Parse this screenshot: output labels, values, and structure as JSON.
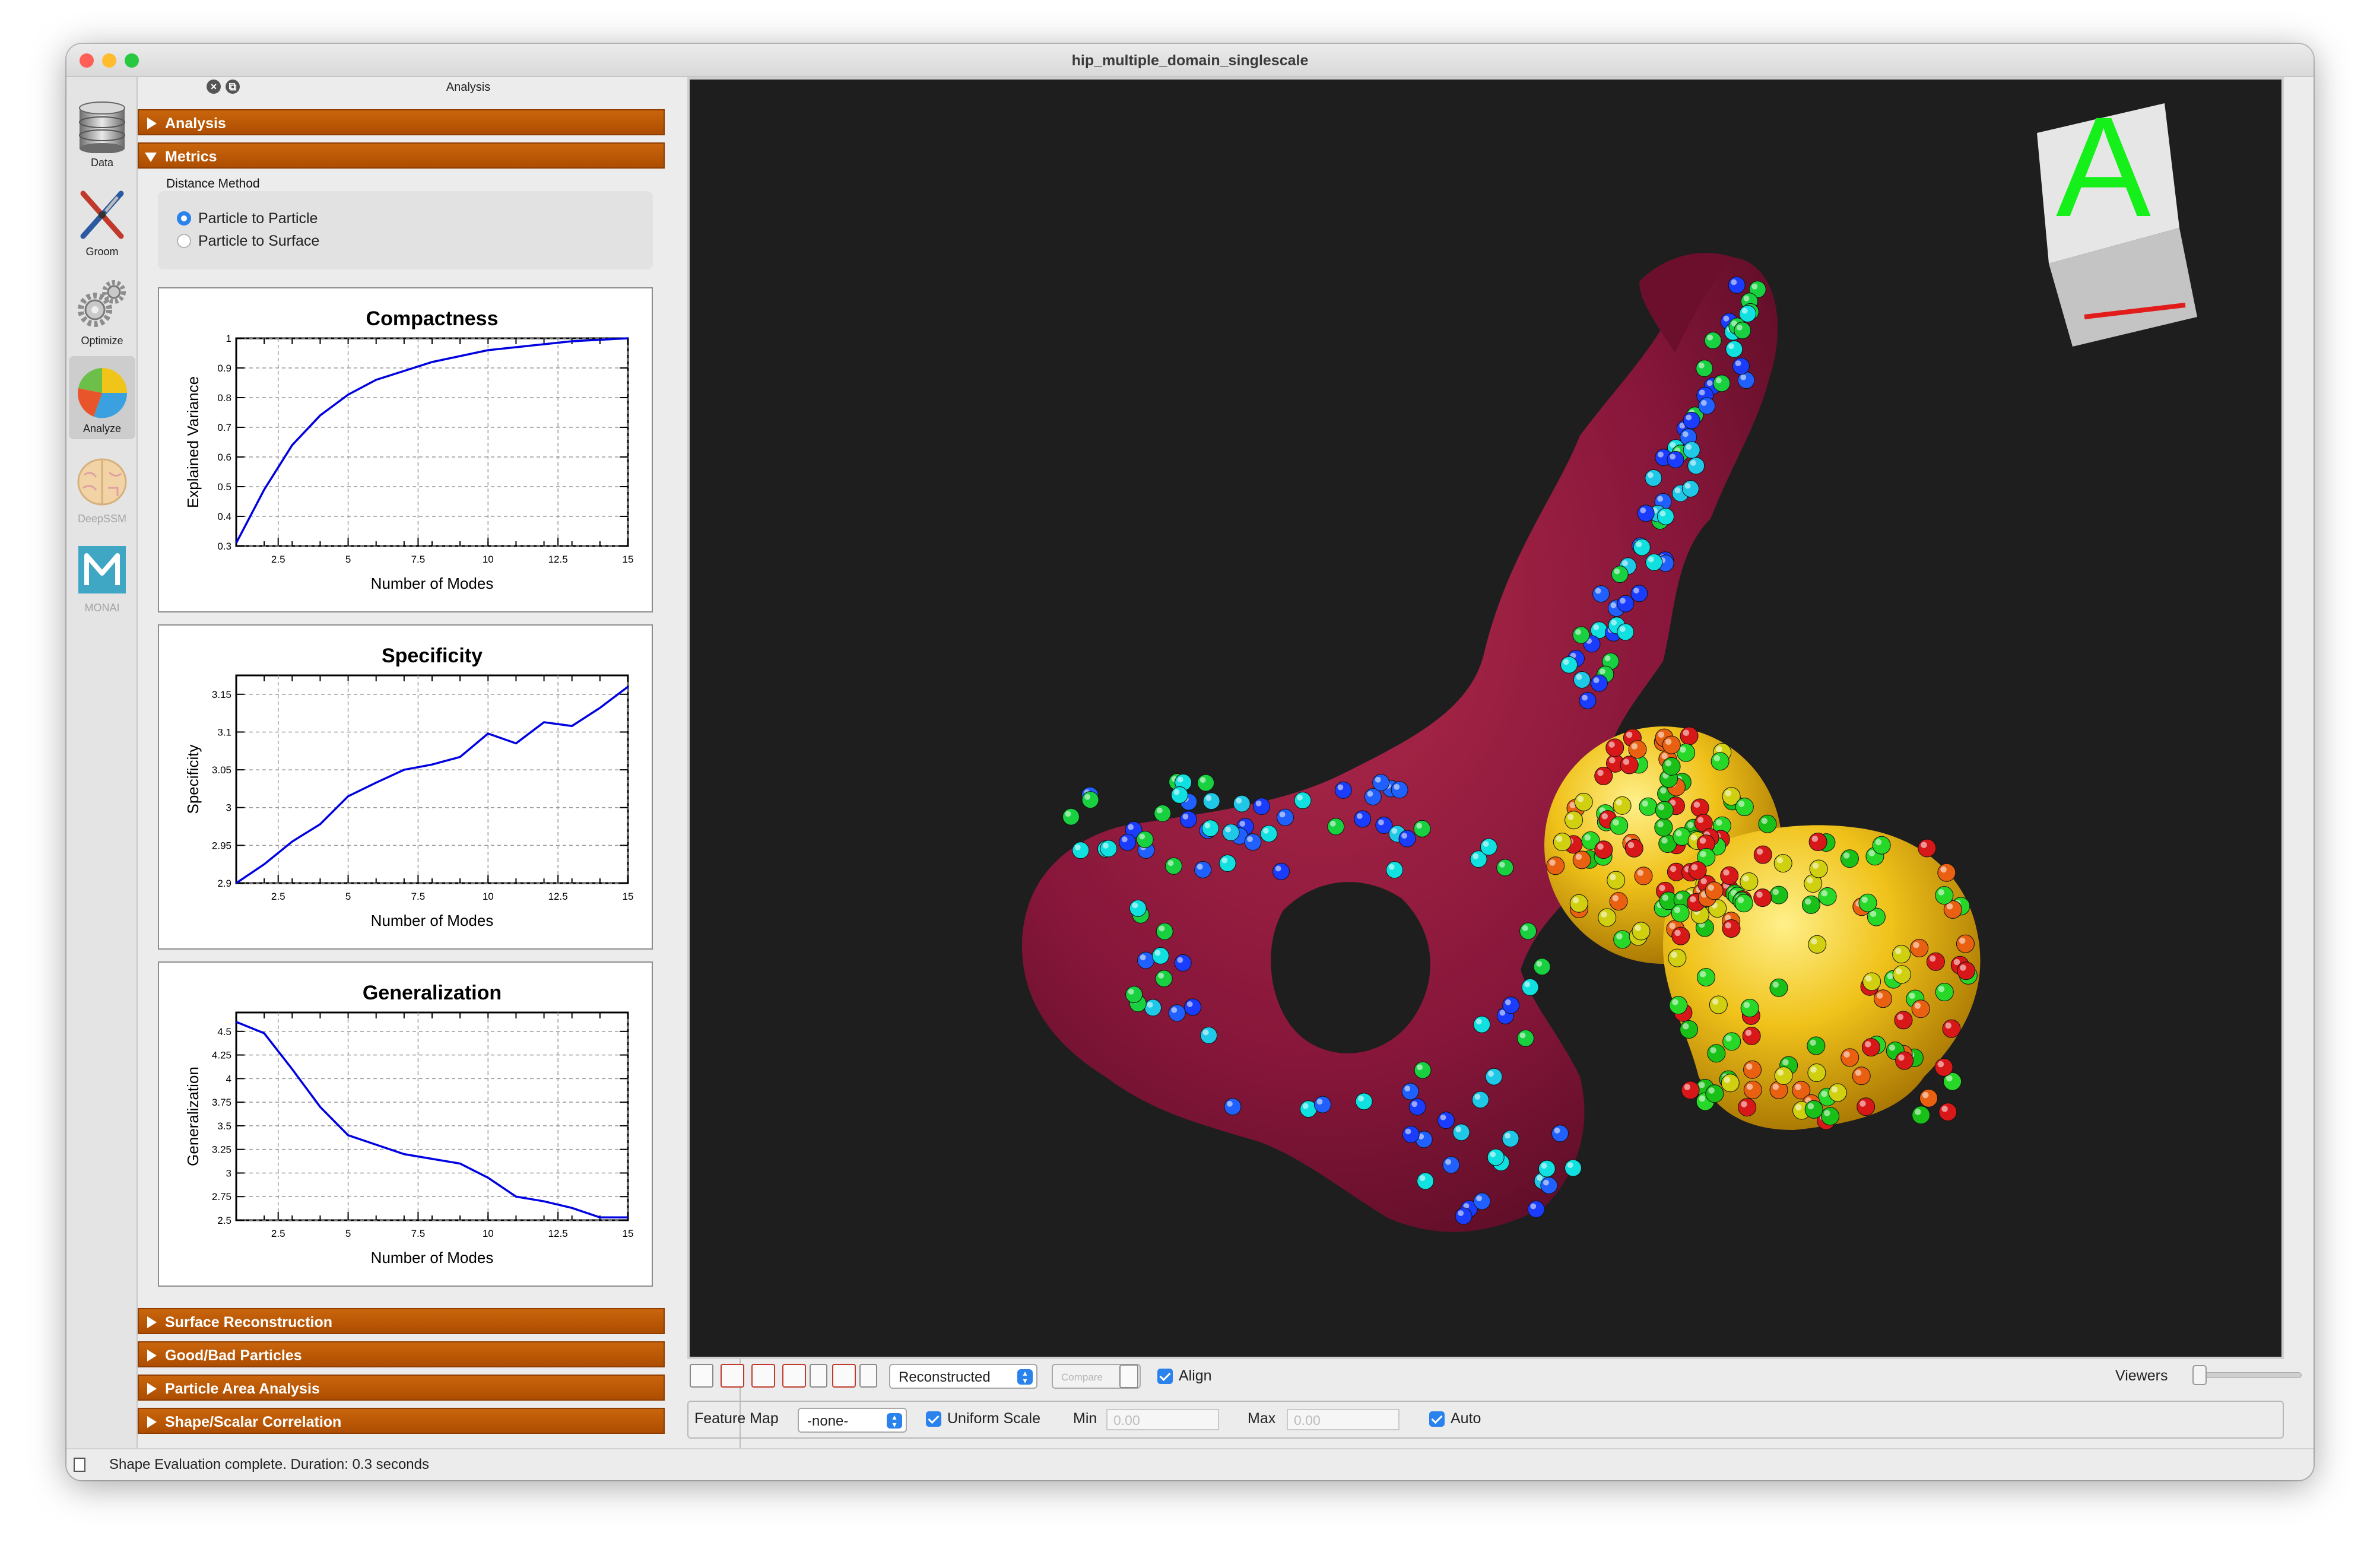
{
  "window": {
    "title": "hip_multiple_domain_singlescale"
  },
  "toolbar": {
    "items": [
      {
        "label": "Data",
        "icon": "database-icon"
      },
      {
        "label": "Groom",
        "icon": "groom-tools-icon"
      },
      {
        "label": "Optimize",
        "icon": "gears-icon"
      },
      {
        "label": "Analyze",
        "icon": "pie-chart-icon"
      },
      {
        "label": "DeepSSM",
        "icon": "brain-icon"
      },
      {
        "label": "MONAI",
        "icon": "monai-logo-icon"
      }
    ]
  },
  "panel": {
    "title": "Analysis",
    "sections_top": [
      "Analysis",
      "Metrics"
    ],
    "distance_method": {
      "label": "Distance Method",
      "options": [
        "Particle to Particle",
        "Particle to Surface"
      ],
      "selected": "Particle to Particle"
    },
    "sections_bottom": [
      "Surface Reconstruction",
      "Good/Bad Particles",
      "Particle Area Analysis",
      "Shape/Scalar Correlation"
    ]
  },
  "chart_data": [
    {
      "type": "line",
      "title": "Compactness",
      "xlabel": "Number of Modes",
      "ylabel": "Explained Variance",
      "xlim": [
        1,
        15
      ],
      "ylim": [
        0.3,
        1
      ],
      "xticks": [
        "2.5",
        "5",
        "7.5",
        "10",
        "12.5",
        "15"
      ],
      "yticks": [
        "0.3",
        "0.4",
        "0.5",
        "0.6",
        "0.7",
        "0.8",
        "0.9",
        "1"
      ],
      "x": [
        1,
        2,
        3,
        4,
        5,
        6,
        7,
        8,
        9,
        10,
        11,
        12,
        13,
        14,
        15
      ],
      "y": [
        0.31,
        0.49,
        0.64,
        0.74,
        0.81,
        0.86,
        0.89,
        0.92,
        0.94,
        0.96,
        0.97,
        0.98,
        0.99,
        0.995,
        1.0
      ]
    },
    {
      "type": "line",
      "title": "Specificity",
      "xlabel": "Number of Modes",
      "ylabel": "Specificity",
      "xlim": [
        1,
        15
      ],
      "ylim": [
        2.9,
        3.175
      ],
      "xticks": [
        "2.5",
        "5",
        "7.5",
        "10",
        "12.5",
        "15"
      ],
      "yticks": [
        "2.9",
        "2.95",
        "3",
        "3.05",
        "3.1",
        "3.15"
      ],
      "x": [
        1,
        2,
        3,
        4,
        5,
        6,
        7,
        8,
        9,
        10,
        11,
        12,
        13,
        14,
        15
      ],
      "y": [
        2.9,
        2.925,
        2.955,
        2.978,
        3.015,
        3.033,
        3.05,
        3.057,
        3.067,
        3.098,
        3.085,
        3.113,
        3.108,
        3.132,
        3.16
      ]
    },
    {
      "type": "line",
      "title": "Generalization",
      "xlabel": "Number of Modes",
      "ylabel": "Generalization",
      "xlim": [
        1,
        15
      ],
      "ylim": [
        2.5,
        4.7
      ],
      "xticks": [
        "2.5",
        "5",
        "7.5",
        "10",
        "12.5",
        "15"
      ],
      "yticks": [
        "2.5",
        "2.75",
        "3",
        "3.25",
        "3.5",
        "3.75",
        "4",
        "4.25",
        "4.5"
      ],
      "x": [
        1,
        2,
        3,
        4,
        5,
        6,
        7,
        8,
        9,
        10,
        11,
        12,
        13,
        14,
        15
      ],
      "y": [
        4.6,
        4.48,
        4.1,
        3.7,
        3.4,
        3.3,
        3.2,
        3.15,
        3.1,
        2.95,
        2.75,
        2.7,
        2.63,
        2.53,
        2.53
      ]
    }
  ],
  "viewer_controls": {
    "display_mode": "Reconstructed",
    "compare_placeholder": "Compare",
    "align_label": "Align",
    "viewers_label": "Viewers",
    "feature_map_label": "Feature Map",
    "feature_map_value": "-none-",
    "uniform_scale_label": "Uniform Scale",
    "min_label": "Min",
    "min_value": "0.00",
    "max_label": "Max",
    "max_value": "0.00",
    "auto_label": "Auto"
  },
  "orientation_cube": {
    "letter": "A"
  },
  "status": {
    "message": "Shape Evaluation complete.  Duration: 0.3 seconds"
  },
  "colors": {
    "accent": "#ad4d00",
    "pelvis": "#8b1a34",
    "femur": "#e3b308",
    "checkbox": "#2a82ec"
  }
}
